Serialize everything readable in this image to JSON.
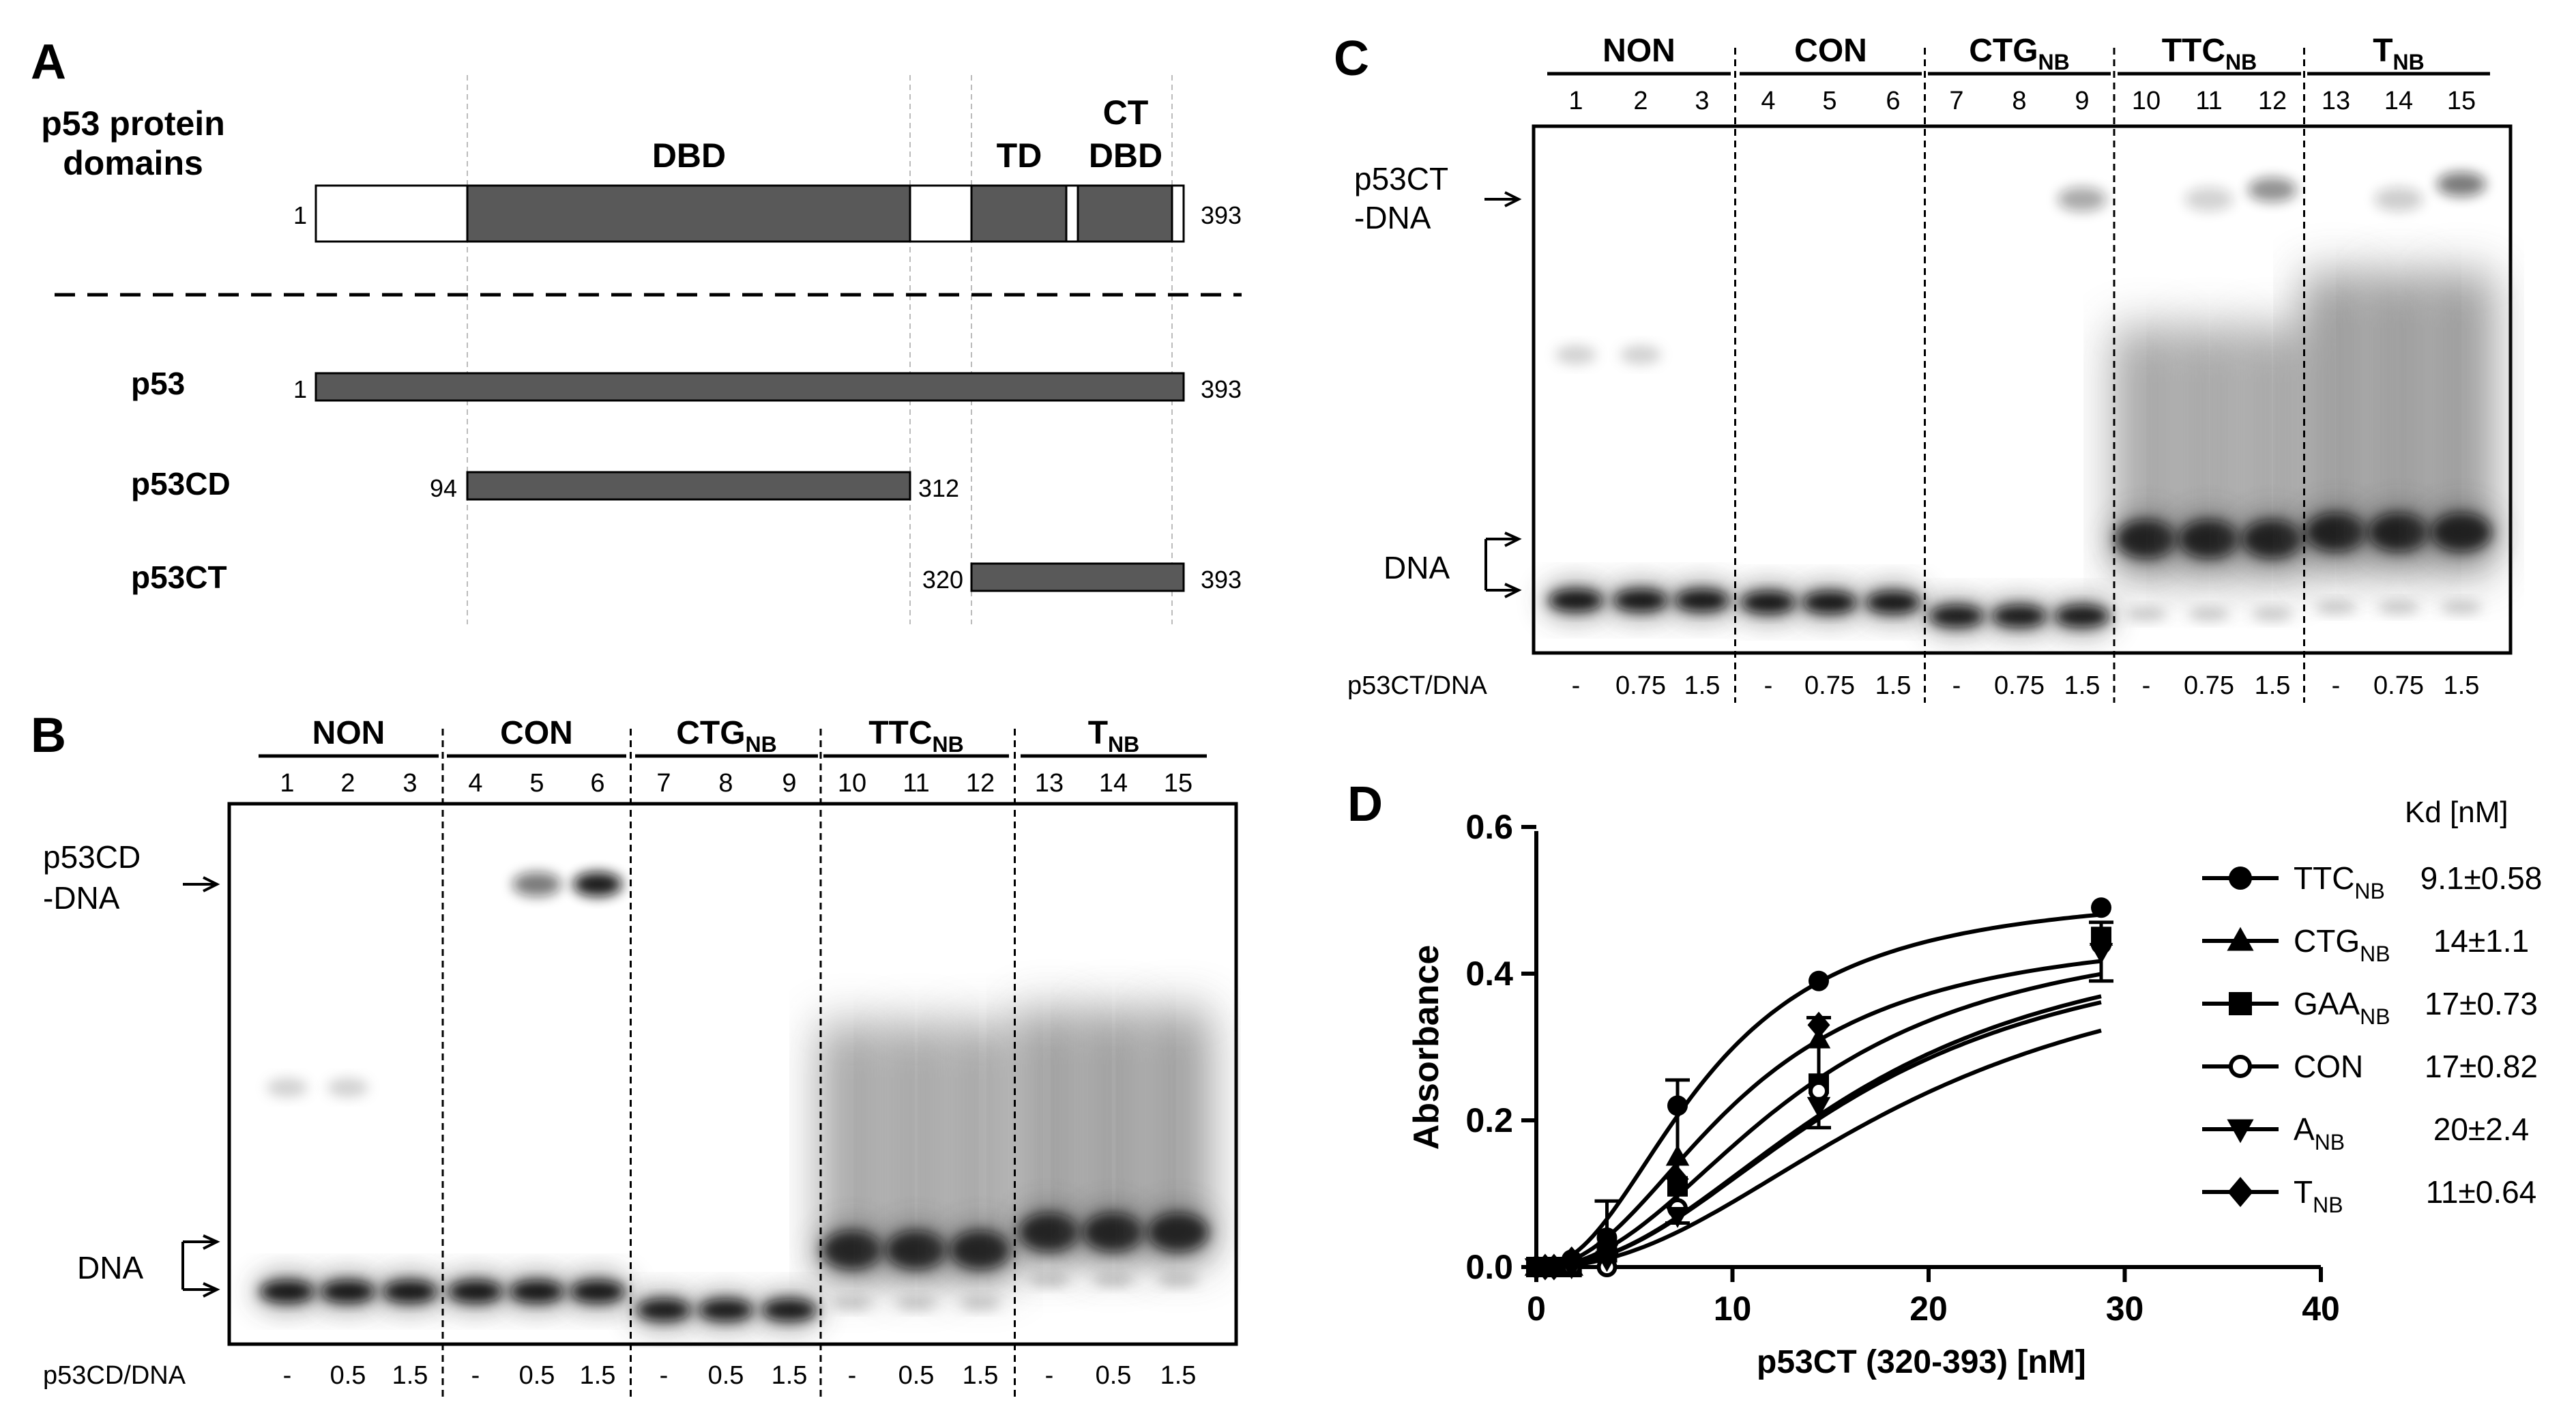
{
  "panel_a": {
    "letter": "A",
    "title_line1": "p53 protein",
    "title_line2": "domains",
    "dbd_label": "DBD",
    "td_label": "TD",
    "ctdbd_line1": "CT",
    "ctdbd_line2": "DBD",
    "full_start": "1",
    "full_end": "393",
    "constructs": [
      {
        "name": "p53",
        "start": "1",
        "end": "393"
      },
      {
        "name": "p53CD",
        "start": "94",
        "end": "312"
      },
      {
        "name": "p53CT",
        "start": "320",
        "end": "393"
      }
    ]
  },
  "panel_b": {
    "letter": "B",
    "groups": [
      "NON",
      "CON",
      "CTG",
      "TTC",
      "T"
    ],
    "subscript": "NB",
    "lanes": [
      "1",
      "2",
      "3",
      "4",
      "5",
      "6",
      "7",
      "8",
      "9",
      "10",
      "11",
      "12",
      "13",
      "14",
      "15"
    ],
    "complex_line1": "p53CD",
    "complex_line2": "-DNA",
    "dna_label": "DNA",
    "ratio_label": "p53CD/DNA",
    "ratios": [
      "-",
      "0.5",
      "1.5",
      "-",
      "0.5",
      "1.5",
      "-",
      "0.5",
      "1.5",
      "-",
      "0.5",
      "1.5",
      "-",
      "0.5",
      "1.5"
    ]
  },
  "panel_c": {
    "letter": "C",
    "groups": [
      "NON",
      "CON",
      "CTG",
      "TTC",
      "T"
    ],
    "subscript": "NB",
    "lanes": [
      "1",
      "2",
      "3",
      "4",
      "5",
      "6",
      "7",
      "8",
      "9",
      "10",
      "11",
      "12",
      "13",
      "14",
      "15"
    ],
    "complex_line1": "p53CT",
    "complex_line2": "-DNA",
    "dna_label": "DNA",
    "ratio_label": "p53CT/DNA",
    "ratios": [
      "-",
      "0.75",
      "1.5",
      "-",
      "0.75",
      "1.5",
      "-",
      "0.75",
      "1.5",
      "-",
      "0.75",
      "1.5",
      "-",
      "0.75",
      "1.5"
    ]
  },
  "panel_d": {
    "letter": "D",
    "kd_header": "Kd [nM]",
    "legend": [
      {
        "base": "TTC",
        "sub": "NB",
        "marker": "circle",
        "kd": "9.1±0.58"
      },
      {
        "base": "CTG",
        "sub": "NB",
        "marker": "triangle-up",
        "kd": "14±1.1"
      },
      {
        "base": "GAA",
        "sub": "NB",
        "marker": "square",
        "kd": "17±0.73"
      },
      {
        "base": "CON",
        "sub": "",
        "marker": "open-circle",
        "kd": "17±0.82"
      },
      {
        "base": "A",
        "sub": "NB",
        "marker": "triangle-down",
        "kd": "20±2.4"
      },
      {
        "base": "T",
        "sub": "NB",
        "marker": "diamond",
        "kd": "11±0.64"
      }
    ]
  },
  "chart_data": {
    "type": "scatter",
    "title": "",
    "xlabel": "p53CT (320-393) [nM]",
    "ylabel": "Absorbance",
    "xlim": [
      0,
      40
    ],
    "ylim": [
      0,
      0.6
    ],
    "xticks": [
      "0",
      "10",
      "20",
      "30",
      "40"
    ],
    "yticks": [
      "0.0",
      "0.2",
      "0.4",
      "0.6"
    ],
    "x": [
      0,
      0.45,
      0.9,
      1.8,
      3.6,
      7.2,
      14.4,
      28.8
    ],
    "series": [
      {
        "name": "TTC_NB",
        "marker": "circle",
        "kd": 9.1,
        "values": [
          0.0,
          0.0,
          0.0,
          0.01,
          0.04,
          0.22,
          0.39,
          0.49
        ]
      },
      {
        "name": "CTG_NB",
        "marker": "triangle-up",
        "kd": 14,
        "values": [
          0.0,
          0.0,
          0.0,
          0.0,
          0.03,
          0.15,
          0.31,
          0.45
        ]
      },
      {
        "name": "GAA_NB",
        "marker": "square",
        "kd": 17,
        "values": [
          0.0,
          0.0,
          0.0,
          0.0,
          0.02,
          0.11,
          0.25,
          0.45
        ]
      },
      {
        "name": "CON",
        "marker": "open-circle",
        "kd": 17,
        "values": [
          0.0,
          0.0,
          0.0,
          0.0,
          0.0,
          0.08,
          0.24,
          0.44
        ]
      },
      {
        "name": "A_NB",
        "marker": "triangle-down",
        "kd": 20,
        "values": [
          0.0,
          0.0,
          0.0,
          0.0,
          0.01,
          0.07,
          0.22,
          0.43
        ]
      },
      {
        "name": "T_NB",
        "marker": "diamond",
        "kd": 11,
        "values": [
          0.0,
          0.0,
          0.0,
          0.01,
          0.03,
          0.12,
          0.33,
          0.44
        ]
      }
    ]
  }
}
